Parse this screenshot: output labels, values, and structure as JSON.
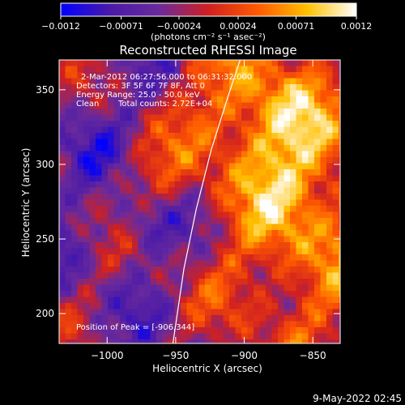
{
  "chart_data": {
    "type": "heatmap",
    "title": "Reconstructed RHESSI Image",
    "xlabel": "Heliocentric X (arcsec)",
    "ylabel": "Heliocentric Y (arcsec)",
    "xlim": [
      -1035,
      -830
    ],
    "ylim": [
      180,
      370
    ],
    "xticks": [
      -1000,
      -950,
      -900,
      -850
    ],
    "xtick_labels": [
      "−1000",
      "−950",
      "−900",
      "−850"
    ],
    "yticks": [
      200,
      250,
      300,
      350
    ],
    "ytick_labels": [
      "200",
      "250",
      "300",
      "350"
    ],
    "colorbar": {
      "range": [
        -0.0012,
        0.0012
      ],
      "ticks": [
        -0.0012,
        -0.00071,
        -0.00024,
        0.00024,
        0.00071,
        0.0012
      ],
      "tick_labels": [
        "−0.0012",
        "−0.00071",
        "−0.00024",
        "0.00024",
        "0.00071",
        "0.0012"
      ],
      "unit_label": "(photons cm⁻² s⁻¹ asec⁻²)",
      "colors": [
        "#0000ff",
        "#4a1aa8",
        "#6a2a9c",
        "#d02020",
        "#ff5a00",
        "#ffc000",
        "#ffffff"
      ]
    },
    "annotations": {
      "time_range": "2-Mar-2012 06:27:56.000 to 06:31:32.000",
      "detectors": "Detectors: 3F 5F 6F 7F 8F, Att 0",
      "energy": "Energy Range: 25.0 - 50.0 keV",
      "method": "Clean",
      "counts": "Total counts: 2.72E+04",
      "peak": "Position of Peak = [-906,344]"
    },
    "peak": [
      -906,
      344
    ],
    "limb_curve": [
      [
        -952,
        180
      ],
      [
        -944,
        230
      ],
      [
        -935,
        270
      ],
      [
        -924,
        310
      ],
      [
        -912,
        345
      ],
      [
        -903,
        370
      ]
    ],
    "grid": false
  },
  "footer": {
    "date": "9-May-2022 02:45"
  }
}
